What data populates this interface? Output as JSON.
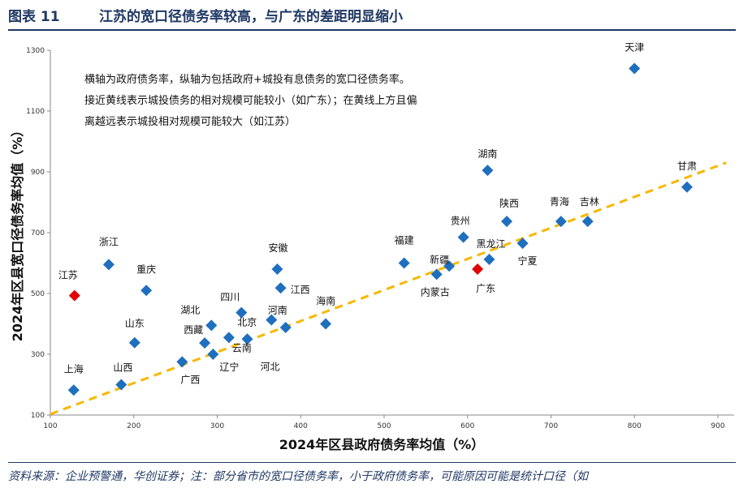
{
  "header": {
    "figure_label": "图表 11",
    "title": "江苏的宽口径债务率较高，与广东的差距明显缩小"
  },
  "source_note": "资料来源：企业预警通，华创证券；注：部分省市的宽口径债务率，小于政府债务率，可能原因可能是统计口径（如",
  "chart_data": {
    "type": "scatter",
    "xlabel": "2024年区县政府债务率均值（%）",
    "ylabel": "2024年区县宽口径债务率均值（%）",
    "xlim": [
      100,
      900
    ],
    "ylim": [
      100,
      1300
    ],
    "xticks": [
      100,
      200,
      300,
      400,
      500,
      600,
      700,
      800,
      900
    ],
    "yticks": [
      100,
      300,
      500,
      700,
      900,
      1100,
      1300
    ],
    "annotation_lines": [
      "横轴为政府债务率，纵轴为包括政府+城投有息债务的宽口径债务率。",
      "接近黄线表示城投债务的相对规模可能较小（如广东）；在黄线上方且偏",
      "离越远表示城投相对规模可能较大（如江苏）"
    ],
    "trendline": {
      "from": [
        100,
        103
      ],
      "to": [
        910,
        930
      ],
      "color": "#f5b800",
      "style": "dashed"
    },
    "points": [
      {
        "name": "天津",
        "x": 800,
        "y": 1240,
        "color": "#1f6fbf"
      },
      {
        "name": "甘肃",
        "x": 863,
        "y": 850,
        "color": "#1f6fbf"
      },
      {
        "name": "湖南",
        "x": 624,
        "y": 905,
        "color": "#1f6fbf"
      },
      {
        "name": "青海",
        "x": 712,
        "y": 737,
        "color": "#1f6fbf"
      },
      {
        "name": "吉林",
        "x": 744,
        "y": 737,
        "color": "#1f6fbf"
      },
      {
        "name": "陕西",
        "x": 647,
        "y": 737,
        "color": "#1f6fbf"
      },
      {
        "name": "贵州",
        "x": 595,
        "y": 685,
        "color": "#1f6fbf"
      },
      {
        "name": "宁夏",
        "x": 666,
        "y": 665,
        "color": "#1f6fbf"
      },
      {
        "name": "黑龙江",
        "x": 626,
        "y": 612,
        "color": "#1f6fbf"
      },
      {
        "name": "福建",
        "x": 524,
        "y": 600,
        "color": "#1f6fbf"
      },
      {
        "name": "新疆",
        "x": 578,
        "y": 590,
        "color": "#1f6fbf"
      },
      {
        "name": "内蒙古",
        "x": 563,
        "y": 563,
        "color": "#1f6fbf"
      },
      {
        "name": "广东",
        "x": 612,
        "y": 580,
        "color": "#e00000"
      },
      {
        "name": "浙江",
        "x": 170,
        "y": 595,
        "color": "#1f6fbf"
      },
      {
        "name": "江苏",
        "x": 129,
        "y": 493,
        "color": "#e00000"
      },
      {
        "name": "重庆",
        "x": 215,
        "y": 510,
        "color": "#1f6fbf"
      },
      {
        "name": "安徽",
        "x": 372,
        "y": 580,
        "color": "#1f6fbf"
      },
      {
        "name": "江西",
        "x": 376,
        "y": 518,
        "color": "#1f6fbf"
      },
      {
        "name": "四川",
        "x": 329,
        "y": 437,
        "color": "#1f6fbf"
      },
      {
        "name": "北京",
        "x": 365,
        "y": 413,
        "color": "#1f6fbf"
      },
      {
        "name": "海南",
        "x": 430,
        "y": 400,
        "color": "#1f6fbf"
      },
      {
        "name": "河南",
        "x": 382,
        "y": 388,
        "color": "#1f6fbf"
      },
      {
        "name": "湖北",
        "x": 293,
        "y": 395,
        "color": "#1f6fbf"
      },
      {
        "name": "西藏",
        "x": 285,
        "y": 337,
        "color": "#1f6fbf"
      },
      {
        "name": "河北",
        "x": 336,
        "y": 350,
        "color": "#1f6fbf"
      },
      {
        "name": "辽宁",
        "x": 295,
        "y": 300,
        "color": "#1f6fbf"
      },
      {
        "name": "山东",
        "x": 201,
        "y": 338,
        "color": "#1f6fbf"
      },
      {
        "name": "广西",
        "x": 258,
        "y": 275,
        "color": "#1f6fbf"
      },
      {
        "name": "山西",
        "x": 185,
        "y": 200,
        "color": "#1f6fbf"
      },
      {
        "name": "上海",
        "x": 128,
        "y": 182,
        "color": "#1f6fbf"
      },
      {
        "name": "云南",
        "x": 314,
        "y": 355,
        "color": "#1f6fbf"
      }
    ]
  }
}
